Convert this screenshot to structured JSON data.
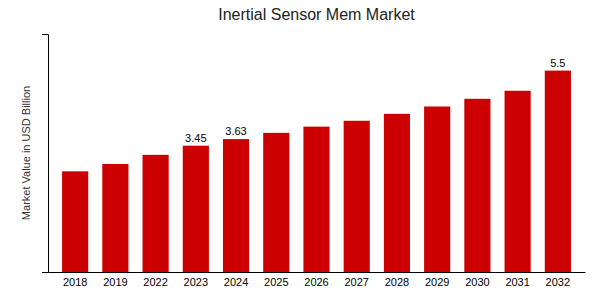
{
  "chart_data": {
    "type": "bar",
    "title": "Inertial Sensor Mem Market",
    "ylabel": "Market Value in USD Billion",
    "categories": [
      "2018",
      "2019",
      "2022",
      "2023",
      "2024",
      "2025",
      "2026",
      "2027",
      "2028",
      "2029",
      "2030",
      "2031",
      "2032"
    ],
    "values": [
      2.75,
      2.95,
      3.2,
      3.45,
      3.63,
      3.8,
      3.97,
      4.13,
      4.32,
      4.52,
      4.73,
      4.95,
      5.5
    ],
    "color": "#CC0000",
    "ylim": [
      0,
      6.5
    ],
    "yticks": [],
    "tick_labels": "x",
    "data_labels": true,
    "value_labels": [
      null,
      null,
      null,
      "3.45",
      "3.63",
      null,
      null,
      null,
      null,
      null,
      null,
      null,
      "5.5"
    ]
  }
}
